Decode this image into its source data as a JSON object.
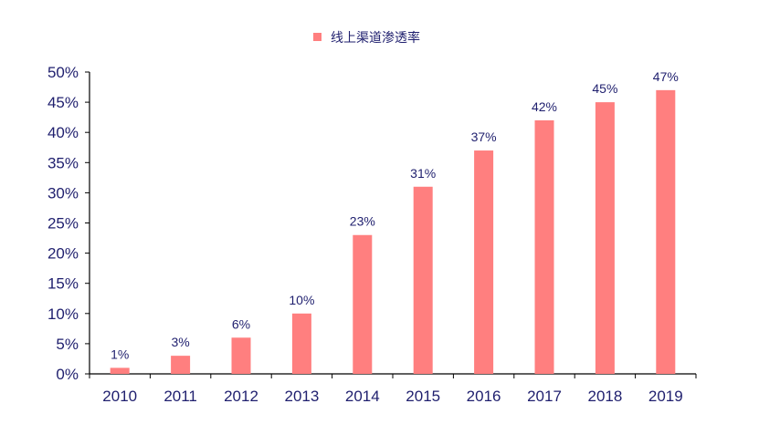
{
  "chart_data": {
    "type": "bar",
    "categories": [
      "2010",
      "2011",
      "2012",
      "2013",
      "2014",
      "2015",
      "2016",
      "2017",
      "2018",
      "2019"
    ],
    "series": [
      {
        "name": "线上渠道渗透率",
        "values": [
          1,
          3,
          6,
          10,
          23,
          31,
          37,
          42,
          45,
          47
        ],
        "color": "#ff7f7f"
      }
    ],
    "data_labels": [
      "1%",
      "3%",
      "6%",
      "10%",
      "23%",
      "31%",
      "37%",
      "42%",
      "45%",
      "47%"
    ],
    "y_ticks": [
      "0%",
      "5%",
      "10%",
      "15%",
      "20%",
      "25%",
      "30%",
      "35%",
      "40%",
      "45%",
      "50%"
    ],
    "ylim": [
      0,
      50
    ],
    "y_step": 5,
    "grid": false,
    "legend_position": "top-center",
    "colors": {
      "text": "#1f1f6e",
      "axis": "#000000"
    }
  }
}
